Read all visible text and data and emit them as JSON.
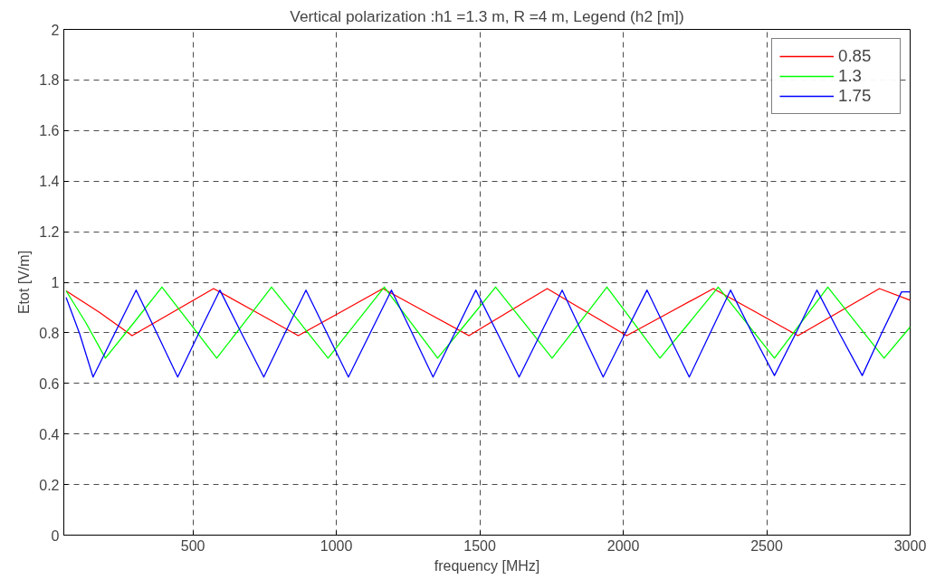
{
  "chart_data": {
    "type": "line",
    "title": "Vertical polarization :h1 =1.3 m, R =4 m, Legend (h2 [m])",
    "xlabel": "frequency [MHz]",
    "ylabel": "Etot [V/m]",
    "xlim": [
      50,
      3000
    ],
    "ylim": [
      0,
      2
    ],
    "xticks": [
      500,
      1000,
      1500,
      2000,
      2500,
      3000
    ],
    "yticks": [
      0,
      0.2,
      0.4,
      0.6,
      0.8,
      1,
      1.2,
      1.4,
      1.6,
      1.8,
      2
    ],
    "grid": true,
    "legend": "top right",
    "series": [
      {
        "name": "0.85",
        "color": "#ff0000",
        "x": [
          58,
          173,
          288,
          430,
          572,
          720,
          867,
          1015,
          1162,
          1312,
          1462,
          1598,
          1735,
          1873,
          2012,
          2163,
          2314,
          2462,
          2609,
          2751,
          2893,
          3000
        ],
        "values": [
          0.966,
          0.882,
          0.789,
          0.882,
          0.975,
          0.882,
          0.789,
          0.882,
          0.975,
          0.882,
          0.789,
          0.882,
          0.975,
          0.882,
          0.789,
          0.882,
          0.975,
          0.882,
          0.789,
          0.882,
          0.975,
          0.929
        ]
      },
      {
        "name": "1.3",
        "color": "#00ff00",
        "x": [
          58,
          127,
          195,
          294,
          392,
          488,
          583,
          679,
          774,
          873,
          971,
          1069,
          1167,
          1260,
          1353,
          1454,
          1555,
          1654,
          1752,
          1848,
          1943,
          2036,
          2128,
          2230,
          2331,
          2429,
          2527,
          2620,
          2713,
          2811,
          2909,
          3000
        ],
        "values": [
          0.966,
          0.84,
          0.7,
          0.84,
          0.981,
          0.84,
          0.7,
          0.84,
          0.981,
          0.84,
          0.7,
          0.84,
          0.981,
          0.84,
          0.7,
          0.84,
          0.981,
          0.84,
          0.7,
          0.84,
          0.981,
          0.84,
          0.7,
          0.84,
          0.981,
          0.84,
          0.7,
          0.84,
          0.981,
          0.84,
          0.7,
          0.823
        ]
      },
      {
        "name": "1.75",
        "color": "#0000ff",
        "x": [
          58,
          105,
          152,
          227,
          302,
          375,
          447,
          520,
          594,
          670,
          747,
          820,
          894,
          968,
          1042,
          1117,
          1192,
          1265,
          1337,
          1412,
          1486,
          1562,
          1637,
          1712,
          1787,
          1858,
          1930,
          2006,
          2083,
          2156,
          2230,
          2302,
          2374,
          2450,
          2527,
          2601,
          2675,
          2754,
          2833,
          2900,
          2970,
          3000
        ],
        "values": [
          0.94,
          0.797,
          0.625,
          0.797,
          0.969,
          0.797,
          0.625,
          0.797,
          0.969,
          0.797,
          0.625,
          0.797,
          0.969,
          0.797,
          0.625,
          0.797,
          0.969,
          0.797,
          0.625,
          0.797,
          0.969,
          0.797,
          0.625,
          0.797,
          0.969,
          0.797,
          0.625,
          0.797,
          0.969,
          0.797,
          0.625,
          0.797,
          0.969,
          0.797,
          0.631,
          0.797,
          0.969,
          0.797,
          0.631,
          0.797,
          0.962,
          0.962
        ]
      }
    ]
  }
}
